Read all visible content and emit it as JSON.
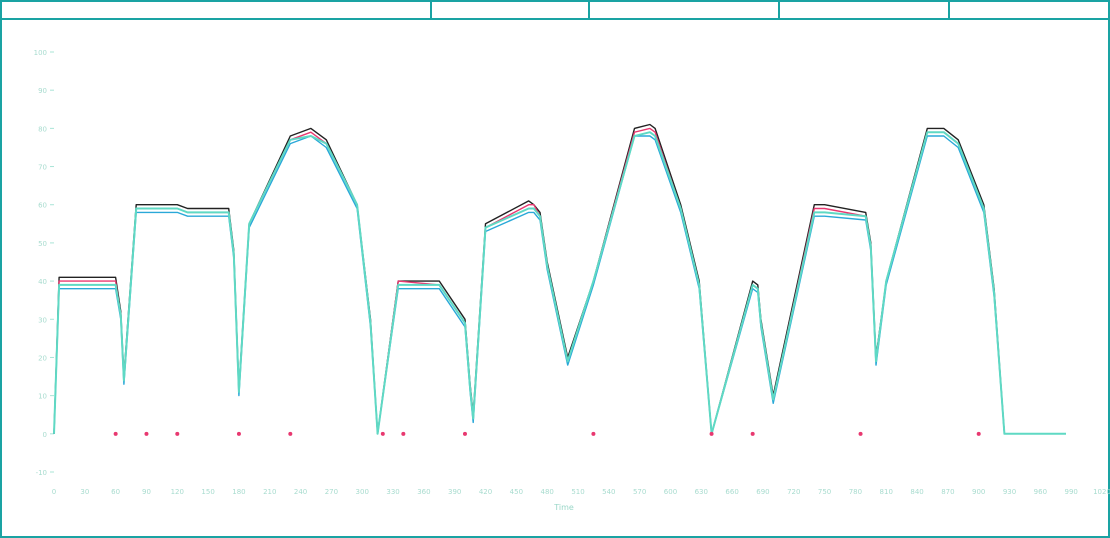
{
  "header": {
    "cells": [
      "",
      "",
      "",
      "",
      "",
      ""
    ]
  },
  "chart_data": {
    "type": "line",
    "title": "",
    "xlabel": "Time",
    "ylabel": "",
    "xlim": [
      0,
      1020
    ],
    "ylim": [
      -10,
      100
    ],
    "x_ticks": [
      0,
      30,
      60,
      90,
      120,
      150,
      180,
      210,
      240,
      270,
      300,
      330,
      360,
      390,
      420,
      450,
      480,
      510,
      540,
      570,
      600,
      630,
      660,
      690,
      720,
      750,
      780,
      810,
      840,
      870,
      900,
      930,
      960,
      990,
      1020
    ],
    "y_ticks": [
      -10,
      0,
      10,
      20,
      30,
      40,
      50,
      60,
      70,
      80,
      90,
      100
    ],
    "grid": false,
    "legend": "none",
    "series": [
      {
        "color": "#222222",
        "x": [
          0,
          5,
          60,
          65,
          68,
          80,
          120,
          130,
          170,
          175,
          180,
          190,
          230,
          250,
          265,
          295,
          308,
          315,
          335,
          375,
          400,
          405,
          408,
          420,
          462,
          467,
          473,
          480,
          500,
          525,
          565,
          580,
          585,
          610,
          628,
          640,
          680,
          685,
          688,
          700,
          740,
          750,
          790,
          795,
          800,
          810,
          850,
          866,
          880,
          905,
          915,
          925,
          950,
          980,
          985
        ],
        "y": [
          0,
          41,
          41,
          32,
          15,
          60,
          60,
          59,
          59,
          48,
          12,
          55,
          78,
          80,
          77,
          60,
          30,
          0,
          40,
          40,
          30,
          13,
          5,
          55,
          61,
          60,
          58,
          45,
          20,
          40,
          80,
          81,
          80,
          60,
          40,
          0,
          40,
          39,
          30,
          10,
          60,
          60,
          58,
          50,
          20,
          40,
          80,
          80,
          77,
          60,
          38,
          0,
          0,
          0,
          0
        ]
      },
      {
        "color": "#e83870",
        "x": [
          0,
          5,
          60,
          65,
          68,
          80,
          120,
          130,
          170,
          175,
          180,
          190,
          230,
          250,
          265,
          295,
          308,
          315,
          335,
          375,
          400,
          405,
          408,
          420,
          462,
          467,
          473,
          480,
          500,
          525,
          565,
          580,
          585,
          610,
          628,
          640,
          680,
          685,
          688,
          700,
          740,
          750,
          790,
          795,
          800,
          810,
          850,
          866,
          880,
          905,
          915,
          925,
          950,
          980,
          985
        ],
        "y": [
          0,
          40,
          40,
          31,
          14,
          59,
          59,
          58,
          58,
          47,
          11,
          55,
          77,
          79,
          76,
          60,
          29,
          0,
          40,
          39,
          29,
          12,
          4,
          54,
          60,
          60,
          57,
          44,
          19,
          40,
          79,
          80,
          79,
          59,
          39,
          0,
          39,
          38,
          29,
          9,
          59,
          59,
          57,
          49,
          19,
          40,
          79,
          79,
          76,
          59,
          37,
          0,
          0,
          0,
          0
        ]
      },
      {
        "color": "#2aa8d8",
        "x": [
          0,
          5,
          60,
          65,
          68,
          80,
          120,
          130,
          170,
          175,
          180,
          190,
          230,
          250,
          265,
          295,
          308,
          315,
          335,
          375,
          400,
          405,
          408,
          420,
          462,
          467,
          473,
          480,
          500,
          525,
          565,
          580,
          585,
          610,
          628,
          640,
          680,
          685,
          688,
          700,
          740,
          750,
          790,
          795,
          800,
          810,
          850,
          866,
          880,
          905,
          915,
          925,
          950,
          980,
          985
        ],
        "y": [
          0,
          38,
          38,
          30,
          13,
          58,
          58,
          57,
          57,
          46,
          10,
          54,
          76,
          78,
          75,
          59,
          28,
          0,
          38,
          38,
          28,
          11,
          3,
          53,
          58,
          58,
          56,
          43,
          18,
          39,
          78,
          78,
          77,
          58,
          38,
          0,
          38,
          37,
          28,
          8,
          57,
          57,
          56,
          48,
          18,
          39,
          78,
          78,
          75,
          58,
          36,
          0,
          0,
          0,
          0
        ]
      },
      {
        "color": "#5fd9c4",
        "x": [
          0,
          5,
          60,
          65,
          68,
          80,
          120,
          130,
          170,
          175,
          180,
          190,
          230,
          250,
          265,
          295,
          308,
          315,
          335,
          375,
          400,
          405,
          408,
          420,
          462,
          467,
          473,
          480,
          500,
          525,
          565,
          580,
          585,
          610,
          628,
          640,
          680,
          685,
          688,
          700,
          740,
          750,
          790,
          795,
          800,
          810,
          850,
          866,
          880,
          905,
          915,
          925,
          950,
          980,
          985
        ],
        "y": [
          0,
          39,
          39,
          31,
          14,
          59,
          59,
          58,
          58,
          47,
          11,
          55,
          77,
          78,
          76,
          60,
          29,
          0,
          39,
          39,
          29,
          12,
          4,
          54,
          59,
          59,
          57,
          44,
          19,
          40,
          78,
          79,
          78,
          59,
          39,
          0,
          39,
          38,
          29,
          9,
          58,
          58,
          57,
          49,
          19,
          40,
          79,
          79,
          76,
          59,
          37,
          0,
          0,
          0,
          0
        ]
      }
    ],
    "markers": {
      "color": "#e83870",
      "x": [
        60,
        90,
        120,
        180,
        230,
        320,
        340,
        400,
        525,
        640,
        680,
        785,
        900
      ],
      "y": [
        0,
        0,
        0,
        0,
        0,
        0,
        0,
        0,
        0,
        0,
        0,
        0,
        0
      ]
    },
    "annotation": ""
  }
}
